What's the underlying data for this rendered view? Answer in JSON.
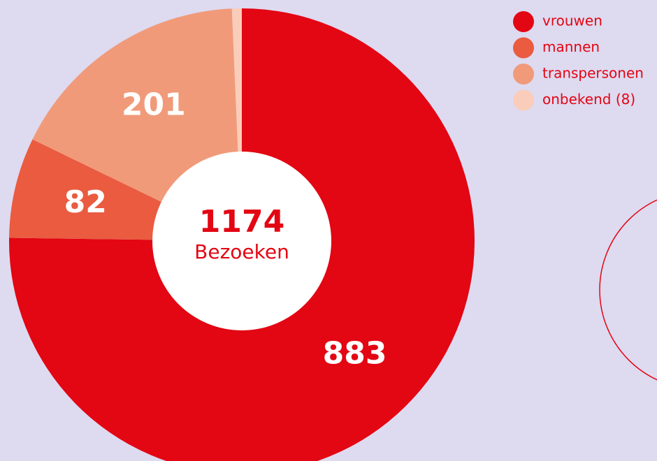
{
  "chart_data": {
    "type": "pie",
    "donut": true,
    "series": [
      {
        "name": "vrouwen",
        "color": "#e30613",
        "values": [
          883
        ]
      },
      {
        "name": "mannen",
        "color": "#ea5b40",
        "values": [
          82
        ]
      },
      {
        "name": "transpersonen",
        "color": "#f19a7a",
        "values": [
          201
        ]
      },
      {
        "name": "onbekend (8)",
        "color": "#f9cdb9",
        "values": [
          8
        ]
      }
    ],
    "total": 1174,
    "total_label": "Bezoeken",
    "legend": "top-right"
  }
}
